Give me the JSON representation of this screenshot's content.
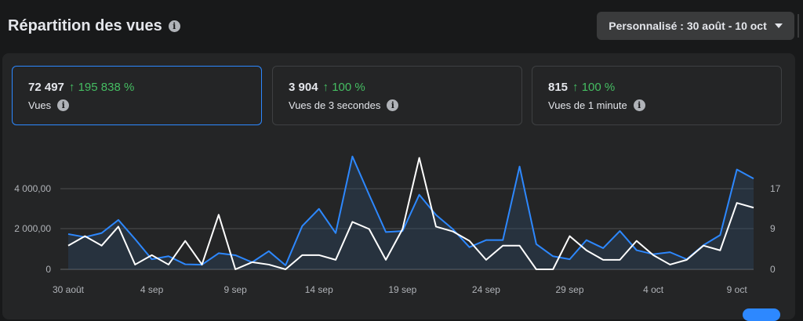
{
  "header": {
    "title": "Répartition des vues",
    "date_range_label": "Personnalisé : 30 août - 10 oct"
  },
  "metrics": [
    {
      "value": "72 497",
      "delta": "195 838 %",
      "label": "Vues",
      "active": true
    },
    {
      "value": "3 904",
      "delta": "100 %",
      "label": "Vues de 3 secondes",
      "active": false
    },
    {
      "value": "815",
      "delta": "100 %",
      "label": "Vues de 1 minute",
      "active": false
    }
  ],
  "colors": {
    "primary_series": "#2d88ff",
    "secondary_series": "#ffffff",
    "positive_delta": "#45bd62"
  },
  "chart_data": {
    "type": "line",
    "x_tick_labels": [
      "30 août",
      "4 sep",
      "9 sep",
      "14 sep",
      "19 sep",
      "24 sep",
      "29 sep",
      "4 oct",
      "9 oct"
    ],
    "y_left_ticks": [
      "0",
      "2 000,00",
      "4 000,00"
    ],
    "y_right_ticks": [
      "0",
      "9",
      "17"
    ],
    "ylim_left": [
      0,
      6000
    ],
    "ylim_right": [
      0,
      25.5
    ],
    "grid": true,
    "series": [
      {
        "axis": "left",
        "values": [
          1750,
          1600,
          1800,
          2450,
          1500,
          500,
          650,
          250,
          230,
          800,
          700,
          350,
          900,
          200,
          2150,
          3000,
          1800,
          5600,
          3700,
          1850,
          1900,
          3700,
          2700,
          2000,
          1100,
          1450,
          1450,
          5100,
          1250,
          650,
          500,
          1450,
          1050,
          1900,
          950,
          750,
          850,
          500,
          1200,
          1700,
          4950,
          4500
        ]
      },
      {
        "axis": "right",
        "values": [
          5,
          7,
          5,
          9,
          1,
          3,
          1,
          6,
          1,
          11.5,
          0,
          1.5,
          1,
          0,
          3,
          3,
          2,
          10,
          8.5,
          2,
          8.5,
          23.5,
          9,
          8,
          6,
          2,
          5,
          5,
          0,
          0,
          7,
          4,
          2,
          2,
          6,
          3,
          1,
          2,
          5,
          4,
          14,
          13
        ]
      }
    ]
  }
}
